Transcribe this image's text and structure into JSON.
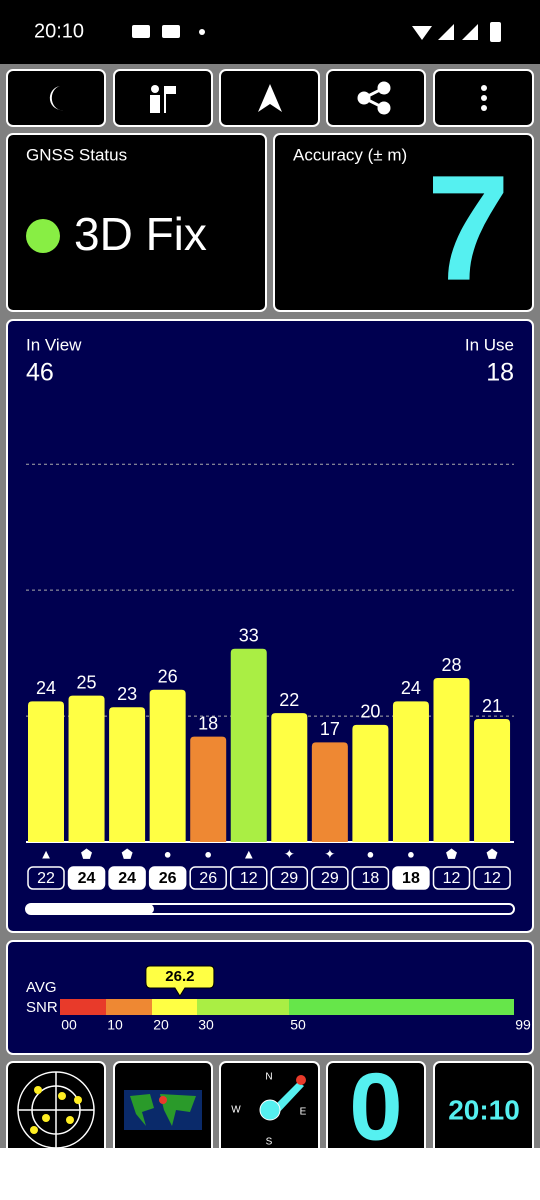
{
  "status_bar": {
    "time": "20:10"
  },
  "gnss_status": {
    "title": "GNSS Status",
    "value": "3D Fix",
    "indicator_color": "#88ee44"
  },
  "accuracy": {
    "title": "Accuracy (± m)",
    "value": 7
  },
  "chart_data": {
    "type": "bar",
    "in_view_label": "In View",
    "in_view": 46,
    "in_use_label": "In Use",
    "in_use": 18,
    "categories": [
      "22",
      "24",
      "24",
      "26",
      "26",
      "12",
      "29",
      "29",
      "18",
      "18",
      "12",
      "12"
    ],
    "symbols": [
      "▲",
      "⬟",
      "⬟",
      "●",
      "●",
      "▲",
      "✦",
      "✦",
      "●",
      "●",
      "⬟",
      "⬟"
    ],
    "used": [
      false,
      true,
      true,
      true,
      false,
      false,
      false,
      false,
      false,
      true,
      false,
      false
    ],
    "values": [
      24,
      25,
      23,
      26,
      18,
      33,
      22,
      17,
      20,
      24,
      28,
      21
    ],
    "colors": [
      "#ffff44",
      "#ffff44",
      "#ffff44",
      "#ffff44",
      "#ee8833",
      "#aaee44",
      "#ffff44",
      "#ee8833",
      "#ffff44",
      "#ffff44",
      "#ffff44",
      "#ffff44"
    ],
    "ylim": [
      0,
      70
    ],
    "yticks": [
      21.5,
      43,
      64.5
    ],
    "grid": true
  },
  "snr": {
    "label_avg": "AVG",
    "label_snr": "SNR",
    "average": 26.2,
    "scale": [
      {
        "value": 0,
        "label": "00"
      },
      10,
      20,
      30,
      50,
      99
    ],
    "segment_colors": [
      "#e83a2a",
      "#ee8833",
      "#ffff44",
      "#aaee44",
      "#66e64a"
    ]
  },
  "tiles": {
    "compass": [
      "N",
      "E",
      "S",
      "W"
    ],
    "satellites": 0,
    "clock": "20:10"
  }
}
